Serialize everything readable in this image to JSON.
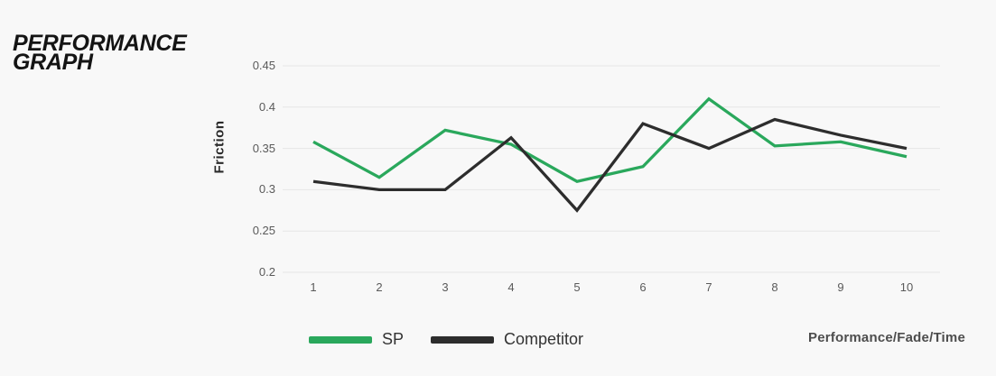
{
  "page": {
    "background": "#f8f8f8"
  },
  "header": {
    "title_line1": "PERFORMANCE",
    "title_line2": "GRAPH"
  },
  "chart_data": {
    "type": "line",
    "title": "Performance Graph",
    "x": [
      1,
      2,
      3,
      4,
      5,
      6,
      7,
      8,
      9,
      10
    ],
    "series": [
      {
        "name": "SP",
        "color": "#2aa85c",
        "values": [
          0.358,
          0.315,
          0.372,
          0.355,
          0.31,
          0.328,
          0.41,
          0.353,
          0.358,
          0.34
        ]
      },
      {
        "name": "Competitor",
        "color": "#2d2d2d",
        "values": [
          0.31,
          0.3,
          0.3,
          0.363,
          0.275,
          0.38,
          0.35,
          0.385,
          0.366,
          0.35
        ]
      }
    ],
    "ylabel": "Friction",
    "xlabel": "Performance/Fade/Time",
    "ylim": [
      0.2,
      0.45
    ],
    "y_ticks": [
      0.2,
      0.25,
      0.3,
      0.35,
      0.4,
      0.45
    ],
    "x_ticks": [
      "1",
      "2",
      "3",
      "4",
      "5",
      "6",
      "7",
      "8",
      "9",
      "10"
    ],
    "grid": "horizontal",
    "grid_color": "#e6e6e6",
    "tick_text_color": "#5a5a5a",
    "legend_position": "bottom"
  }
}
